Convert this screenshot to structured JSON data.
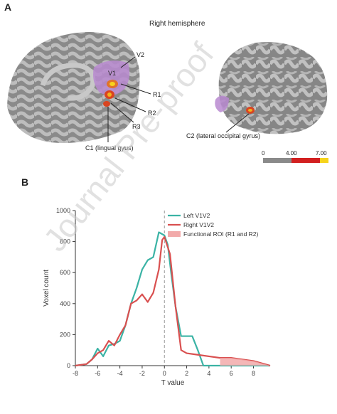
{
  "panel_a": {
    "letter": "A",
    "title": "Right hemisphere",
    "labels": {
      "v2": "V2",
      "v1": "V1",
      "r1": "R1",
      "r2": "R2",
      "r3": "R3",
      "c1": "C1 (lingual gyus)",
      "c2": "C2 (lateral occipital gyrus)"
    },
    "colorbar": {
      "ticks": [
        "0",
        "4.00",
        "7.00"
      ],
      "colors": [
        "#8a8a8a",
        "#d22020",
        "#f6d31c"
      ]
    }
  },
  "panel_b": {
    "letter": "B"
  },
  "watermark": "Journal Pre-proof",
  "chart_data": {
    "type": "line",
    "title": "",
    "xlabel": "T value",
    "ylabel": "Voxel count",
    "xlim": [
      -8,
      9.5
    ],
    "ylim": [
      0,
      1000
    ],
    "xticks": [
      -8,
      -6,
      -4,
      -2,
      0,
      2,
      4,
      6,
      8
    ],
    "yticks": [
      0,
      200,
      400,
      600,
      800,
      1000
    ],
    "grid": false,
    "legend_position": "top-right",
    "vline_x": 0,
    "series": [
      {
        "name": "Left V1V2",
        "color": "#3bb3a5",
        "points": [
          [
            -8,
            0
          ],
          [
            -7,
            10
          ],
          [
            -6.5,
            40
          ],
          [
            -6,
            110
          ],
          [
            -5.5,
            60
          ],
          [
            -5,
            130
          ],
          [
            -4.5,
            140
          ],
          [
            -4,
            160
          ],
          [
            -3.5,
            260
          ],
          [
            -3,
            400
          ],
          [
            -2.5,
            500
          ],
          [
            -2,
            620
          ],
          [
            -1.5,
            680
          ],
          [
            -1,
            700
          ],
          [
            -0.5,
            860
          ],
          [
            0,
            840
          ],
          [
            0.3,
            780
          ],
          [
            0.6,
            600
          ],
          [
            1,
            380
          ],
          [
            1.5,
            190
          ],
          [
            2,
            190
          ],
          [
            2.5,
            190
          ],
          [
            3,
            100
          ],
          [
            3.5,
            0
          ],
          [
            4,
            0
          ],
          [
            9.5,
            0
          ]
        ]
      },
      {
        "name": "Right V1V2",
        "color": "#d95050",
        "points": [
          [
            -8,
            0
          ],
          [
            -7,
            10
          ],
          [
            -6.5,
            40
          ],
          [
            -6,
            80
          ],
          [
            -5.5,
            100
          ],
          [
            -5,
            160
          ],
          [
            -4.5,
            130
          ],
          [
            -4,
            200
          ],
          [
            -3.5,
            260
          ],
          [
            -3,
            400
          ],
          [
            -2.5,
            420
          ],
          [
            -2,
            460
          ],
          [
            -1.5,
            410
          ],
          [
            -1,
            470
          ],
          [
            -0.5,
            620
          ],
          [
            -0.2,
            810
          ],
          [
            0,
            830
          ],
          [
            0.5,
            720
          ],
          [
            1,
            380
          ],
          [
            1.5,
            100
          ],
          [
            2,
            80
          ],
          [
            3,
            70
          ],
          [
            4,
            60
          ],
          [
            5,
            50
          ],
          [
            6,
            50
          ],
          [
            7,
            40
          ],
          [
            8,
            30
          ],
          [
            9,
            10
          ],
          [
            9.5,
            0
          ]
        ]
      },
      {
        "name": "Functional ROI (R1 and R2)",
        "color": "#f2aaaa",
        "type": "area",
        "points": [
          [
            5,
            50
          ],
          [
            6,
            50
          ],
          [
            7,
            40
          ],
          [
            8,
            30
          ],
          [
            9,
            10
          ],
          [
            9.5,
            0
          ]
        ]
      }
    ]
  }
}
